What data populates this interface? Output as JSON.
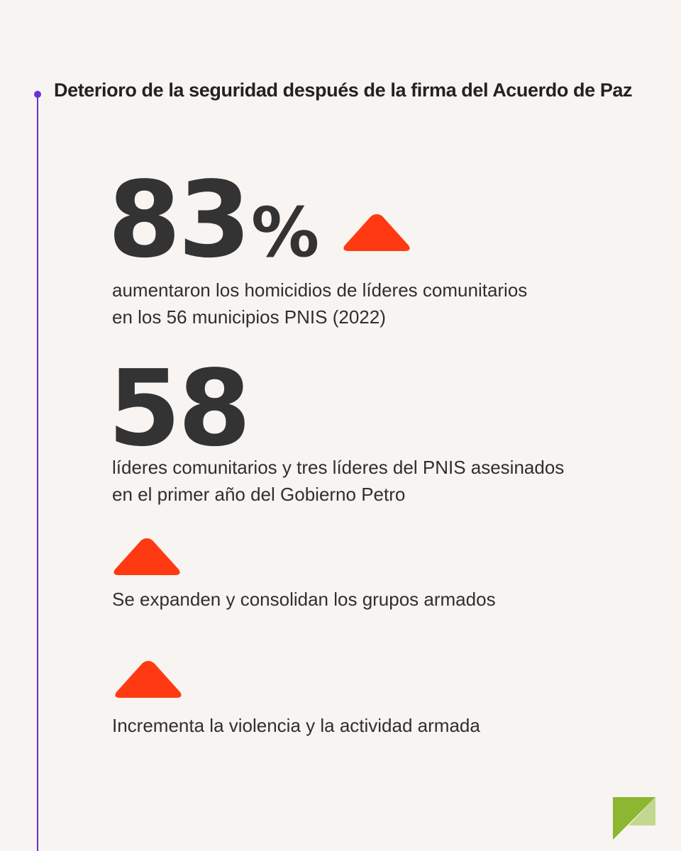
{
  "title": "Deterioro de la seguridad después de la firma del Acuerdo de Paz",
  "colors": {
    "accent_line": "#6a32d6",
    "arrow": "#ff3a12",
    "logo_dark": "#8db631",
    "logo_light": "#c3d88e"
  },
  "stats": [
    {
      "number": "83",
      "suffix": "%",
      "trend_icon": "up-triangle-icon",
      "lines": [
        "aumentaron los homicidios de líderes comunitarios",
        "en los 56 municipios PNIS (2022)"
      ]
    },
    {
      "number": "58",
      "lines": [
        "líderes comunitarios y tres líderes del PNIS asesinados",
        "en el primer año del Gobierno Petro"
      ]
    },
    {
      "trend_icon": "up-triangle-icon",
      "lines": [
        "Se expanden y consolidan los grupos armados"
      ]
    },
    {
      "trend_icon": "up-triangle-icon",
      "lines": [
        "Incrementa la violencia y la actividad armada"
      ]
    }
  ]
}
